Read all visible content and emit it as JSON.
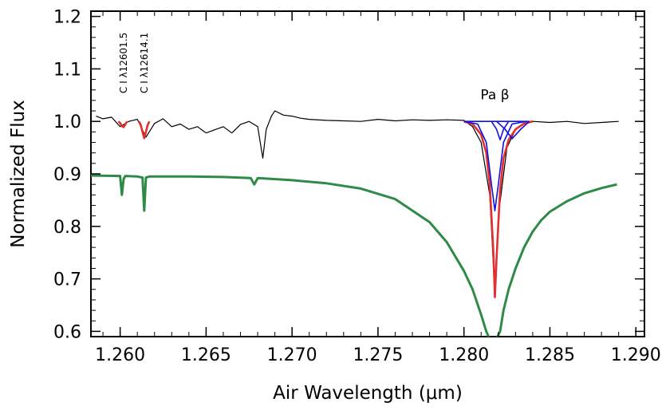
{
  "chart_data": {
    "type": "line",
    "title": "",
    "xlabel": "Air Wavelength (μm)",
    "ylabel": "Normalized Flux",
    "xlim": [
      1.2583,
      1.2905
    ],
    "ylim": [
      0.59,
      1.21
    ],
    "x_ticks": [
      1.26,
      1.265,
      1.27,
      1.275,
      1.28,
      1.285,
      1.29
    ],
    "x_tick_labels": [
      "1.260",
      "1.265",
      "1.270",
      "1.275",
      "1.280",
      "1.285",
      "1.290"
    ],
    "y_ticks": [
      0.6,
      0.7,
      0.8,
      0.9,
      1.0,
      1.1,
      1.2
    ],
    "y_tick_labels": [
      "0.6",
      "0.7",
      "0.8",
      "0.9",
      "1.0",
      "1.1",
      "1.2"
    ],
    "grid": false,
    "legend": "none",
    "annotations": [
      {
        "text": "C I λ12601.5",
        "x": 1.2602,
        "orientation": "vertical"
      },
      {
        "text": "C I λ12614.1",
        "x": 1.2614,
        "orientation": "vertical"
      },
      {
        "text": "Pa β",
        "x": 1.2818,
        "y": 1.05
      }
    ],
    "series": [
      {
        "color": "#000000",
        "style": "observed",
        "x": [
          1.2586,
          1.259,
          1.2595,
          1.26,
          1.2605,
          1.261,
          1.2615,
          1.262,
          1.2625,
          1.263,
          1.2635,
          1.264,
          1.2645,
          1.265,
          1.2655,
          1.266,
          1.2665,
          1.267,
          1.2675,
          1.268,
          1.2683,
          1.2685,
          1.2688,
          1.269,
          1.2695,
          1.27,
          1.2705,
          1.271,
          1.272,
          1.273,
          1.274,
          1.275,
          1.276,
          1.277,
          1.278,
          1.279,
          1.28,
          1.2805,
          1.281,
          1.2815,
          1.2818,
          1.282,
          1.2825,
          1.283,
          1.2835,
          1.284,
          1.285,
          1.286,
          1.287,
          1.288,
          1.289
        ],
        "y": [
          1.01,
          1.005,
          1.008,
          0.99,
          1.0,
          1.004,
          0.97,
          0.996,
          1.005,
          0.99,
          0.995,
          0.985,
          0.99,
          0.978,
          0.984,
          0.99,
          0.978,
          0.994,
          1.0,
          0.99,
          0.93,
          0.985,
          1.01,
          1.02,
          1.012,
          1.01,
          1.006,
          1.004,
          1.002,
          1.001,
          1.0,
          1.004,
          1.001,
          1.003,
          1.002,
          1.003,
          1.002,
          0.99,
          0.96,
          0.86,
          0.67,
          0.82,
          0.95,
          0.985,
          0.995,
          1.0,
          0.998,
          1.0,
          0.996,
          0.998,
          1.0
        ]
      },
      {
        "color": "#e03030",
        "style": "fit",
        "segments": [
          {
            "x": [
              1.2599,
              1.26,
              1.2601,
              1.2602,
              1.2603,
              1.2604
            ],
            "y": [
              1.0,
              0.997,
              0.991,
              0.989,
              0.994,
              1.0
            ]
          },
          {
            "x": [
              1.2611,
              1.2612,
              1.2613,
              1.2614,
              1.2615,
              1.2616,
              1.2617
            ],
            "y": [
              1.0,
              0.993,
              0.98,
              0.968,
              0.98,
              0.993,
              1.0
            ]
          },
          {
            "x": [
              1.28,
              1.2805,
              1.281,
              1.2813,
              1.2815,
              1.2817,
              1.2818,
              1.2819,
              1.2821,
              1.2823,
              1.2826,
              1.283,
              1.2835,
              1.284
            ],
            "y": [
              1.0,
              0.995,
              0.975,
              0.94,
              0.88,
              0.76,
              0.665,
              0.74,
              0.87,
              0.93,
              0.965,
              0.985,
              0.996,
              1.0
            ]
          }
        ]
      },
      {
        "color": "#1010e0",
        "style": "components",
        "segments": [
          {
            "x": [
              1.28,
              1.2808,
              1.2813,
              1.2816,
              1.2818,
              1.282,
              1.2823,
              1.2828,
              1.2836
            ],
            "y": [
              1.0,
              0.995,
              0.96,
              0.88,
              0.83,
              0.88,
              0.96,
              0.995,
              1.0
            ]
          },
          {
            "x": [
              1.2816,
              1.2819,
              1.2821,
              1.2823,
              1.2826
            ],
            "y": [
              1.0,
              0.985,
              0.965,
              0.985,
              1.0
            ]
          },
          {
            "x": [
              1.2819,
              1.2824,
              1.2828,
              1.2833,
              1.2838
            ],
            "y": [
              1.0,
              0.985,
              0.967,
              0.985,
              1.0
            ]
          },
          {
            "x": [
              1.28,
              1.2838
            ],
            "y": [
              1.0,
              1.0
            ]
          }
        ]
      },
      {
        "color": "#2e8b47",
        "style": "model",
        "x": [
          1.2583,
          1.26,
          1.2601,
          1.2602,
          1.2603,
          1.261,
          1.2613,
          1.2614,
          1.2615,
          1.2617,
          1.264,
          1.266,
          1.2676,
          1.2678,
          1.268,
          1.27,
          1.272,
          1.274,
          1.276,
          1.278,
          1.279,
          1.28,
          1.2805,
          1.281,
          1.2813,
          1.2815,
          1.2818,
          1.2821,
          1.2823,
          1.2826,
          1.283,
          1.2835,
          1.284,
          1.2845,
          1.285,
          1.286,
          1.287,
          1.288,
          1.2889
        ],
        "y": [
          0.897,
          0.896,
          0.86,
          0.89,
          0.896,
          0.895,
          0.893,
          0.83,
          0.893,
          0.895,
          0.895,
          0.894,
          0.892,
          0.88,
          0.892,
          0.888,
          0.882,
          0.872,
          0.852,
          0.808,
          0.77,
          0.715,
          0.68,
          0.632,
          0.6,
          0.585,
          0.58,
          0.6,
          0.64,
          0.68,
          0.72,
          0.76,
          0.79,
          0.812,
          0.828,
          0.848,
          0.863,
          0.873,
          0.88
        ]
      }
    ]
  }
}
